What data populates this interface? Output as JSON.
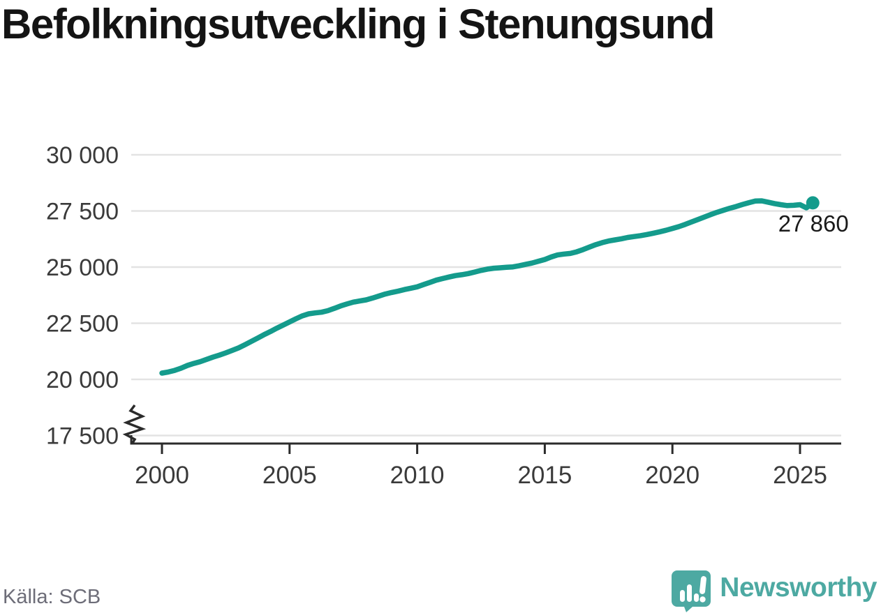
{
  "title": "Befolkningsutveckling i Stenungsund",
  "source": "Källa: SCB",
  "branding": {
    "name": "Newsworthy",
    "color": "#4da9a2"
  },
  "colors": {
    "line": "#149b8c",
    "grid": "#e3e3e3",
    "axis": "#2b2b2b",
    "tick_label": "#3a3a3a",
    "title": "#141414",
    "annotation": "#1a1a1a",
    "source": "#6d6d78",
    "background": "#ffffff"
  },
  "chart_data": {
    "type": "line",
    "title": "Befolkningsutveckling i Stenungsund",
    "xlabel": "",
    "ylabel": "",
    "grid": "horizontal",
    "legend": "none",
    "axis_break": true,
    "xlim": [
      1998.8,
      2027.1
    ],
    "ylim": [
      17500,
      30000
    ],
    "x_ticks": [
      {
        "value": 2000,
        "label": "2000"
      },
      {
        "value": 2005,
        "label": "2005"
      },
      {
        "value": 2010,
        "label": "2010"
      },
      {
        "value": 2015,
        "label": "2015"
      },
      {
        "value": 2020,
        "label": "2020"
      },
      {
        "value": 2025,
        "label": "2025"
      }
    ],
    "y_ticks": [
      {
        "value": 17500,
        "label": "17 500"
      },
      {
        "value": 20000,
        "label": "20 000"
      },
      {
        "value": 22500,
        "label": "22 500"
      },
      {
        "value": 25000,
        "label": "25 000"
      },
      {
        "value": 27500,
        "label": "27 500"
      },
      {
        "value": 30000,
        "label": "30 000"
      }
    ],
    "end_point": {
      "x": 2025.5,
      "value": 27860,
      "label": "27 860"
    },
    "series": [
      {
        "points": [
          [
            2000,
            20280
          ],
          [
            2000.25,
            20330
          ],
          [
            2000.5,
            20400
          ],
          [
            2000.75,
            20500
          ],
          [
            2001,
            20620
          ],
          [
            2001.25,
            20710
          ],
          [
            2001.5,
            20790
          ],
          [
            2001.75,
            20890
          ],
          [
            2002,
            20990
          ],
          [
            2002.25,
            21080
          ],
          [
            2002.5,
            21180
          ],
          [
            2002.75,
            21290
          ],
          [
            2003,
            21400
          ],
          [
            2003.25,
            21540
          ],
          [
            2003.5,
            21690
          ],
          [
            2003.75,
            21840
          ],
          [
            2004,
            21990
          ],
          [
            2004.25,
            22130
          ],
          [
            2004.5,
            22280
          ],
          [
            2004.75,
            22420
          ],
          [
            2005,
            22560
          ],
          [
            2005.25,
            22700
          ],
          [
            2005.5,
            22830
          ],
          [
            2005.75,
            22920
          ],
          [
            2006,
            22960
          ],
          [
            2006.25,
            22990
          ],
          [
            2006.5,
            23060
          ],
          [
            2006.75,
            23160
          ],
          [
            2007,
            23270
          ],
          [
            2007.25,
            23360
          ],
          [
            2007.5,
            23440
          ],
          [
            2007.75,
            23490
          ],
          [
            2008,
            23540
          ],
          [
            2008.25,
            23620
          ],
          [
            2008.5,
            23710
          ],
          [
            2008.75,
            23800
          ],
          [
            2009,
            23870
          ],
          [
            2009.25,
            23930
          ],
          [
            2009.5,
            24000
          ],
          [
            2009.75,
            24060
          ],
          [
            2010,
            24120
          ],
          [
            2010.25,
            24220
          ],
          [
            2010.5,
            24320
          ],
          [
            2010.75,
            24420
          ],
          [
            2011,
            24490
          ],
          [
            2011.25,
            24560
          ],
          [
            2011.5,
            24620
          ],
          [
            2011.75,
            24660
          ],
          [
            2012,
            24710
          ],
          [
            2012.25,
            24780
          ],
          [
            2012.5,
            24850
          ],
          [
            2012.75,
            24910
          ],
          [
            2013,
            24950
          ],
          [
            2013.25,
            24970
          ],
          [
            2013.5,
            24990
          ],
          [
            2013.75,
            25010
          ],
          [
            2014,
            25060
          ],
          [
            2014.25,
            25120
          ],
          [
            2014.5,
            25180
          ],
          [
            2014.75,
            25260
          ],
          [
            2015,
            25340
          ],
          [
            2015.25,
            25450
          ],
          [
            2015.5,
            25540
          ],
          [
            2015.75,
            25580
          ],
          [
            2016,
            25610
          ],
          [
            2016.25,
            25680
          ],
          [
            2016.5,
            25780
          ],
          [
            2016.75,
            25890
          ],
          [
            2017,
            26000
          ],
          [
            2017.25,
            26090
          ],
          [
            2017.5,
            26160
          ],
          [
            2017.75,
            26210
          ],
          [
            2018,
            26260
          ],
          [
            2018.25,
            26320
          ],
          [
            2018.5,
            26360
          ],
          [
            2018.75,
            26400
          ],
          [
            2019,
            26450
          ],
          [
            2019.25,
            26510
          ],
          [
            2019.5,
            26570
          ],
          [
            2019.75,
            26640
          ],
          [
            2020,
            26720
          ],
          [
            2020.25,
            26800
          ],
          [
            2020.5,
            26900
          ],
          [
            2020.75,
            27010
          ],
          [
            2021,
            27120
          ],
          [
            2021.25,
            27230
          ],
          [
            2021.5,
            27340
          ],
          [
            2021.75,
            27440
          ],
          [
            2022,
            27530
          ],
          [
            2022.25,
            27620
          ],
          [
            2022.5,
            27700
          ],
          [
            2022.75,
            27790
          ],
          [
            2023,
            27870
          ],
          [
            2023.25,
            27940
          ],
          [
            2023.5,
            27950
          ],
          [
            2023.75,
            27890
          ],
          [
            2024,
            27830
          ],
          [
            2024.25,
            27780
          ],
          [
            2024.5,
            27740
          ],
          [
            2024.75,
            27750
          ],
          [
            2025,
            27780
          ],
          [
            2025.25,
            27640
          ],
          [
            2025.5,
            27860
          ]
        ]
      }
    ]
  }
}
